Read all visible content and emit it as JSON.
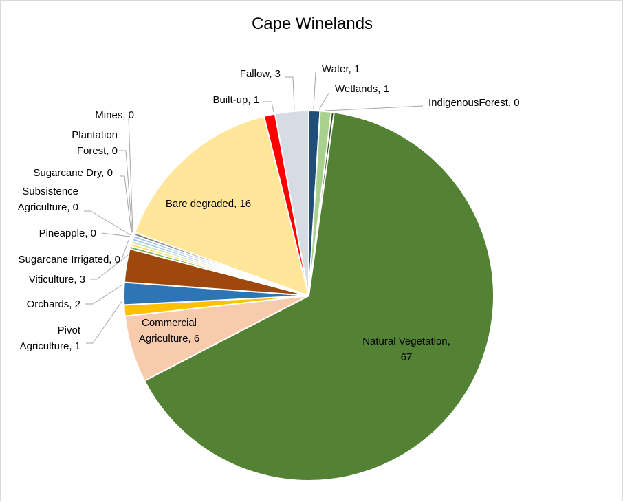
{
  "chart_data": {
    "type": "pie",
    "title": "Cape Winelands",
    "slices": [
      {
        "name": "Water",
        "value": 1,
        "color": "#1f4e79",
        "label": "Water, 1"
      },
      {
        "name": "Wetlands",
        "value": 1,
        "color": "#a9d18e",
        "label": "Wetlands, 1"
      },
      {
        "name": "IndigenousForest",
        "value": 0,
        "color": "#375623",
        "label": "IndigenousForest, 0"
      },
      {
        "name": "Natural Vegetation",
        "value": 67,
        "color": "#548235",
        "label_lines": [
          "Natural Vegetation,",
          "67"
        ]
      },
      {
        "name": "Commercial Agriculture",
        "value": 6,
        "color": "#f8cbad",
        "label_lines": [
          "Commercial",
          "Agriculture, 6"
        ]
      },
      {
        "name": "Pivot Agriculture",
        "value": 1,
        "color": "#ffc000",
        "label_lines": [
          "Pivot",
          "Agriculture, 1"
        ]
      },
      {
        "name": "Orchards",
        "value": 2,
        "color": "#2e75b6",
        "label": "Orchards, 2"
      },
      {
        "name": "Viticulture",
        "value": 3,
        "color": "#9e480e",
        "label": "Viticulture, 3"
      },
      {
        "name": "Sugarcane Irrigated",
        "value": 0,
        "color": "#70ad47",
        "label": "Sugarcane Irrigated, 0"
      },
      {
        "name": "Pineapple",
        "value": 0,
        "color": "#ffd966",
        "label": "Pineapple, 0"
      },
      {
        "name": "Subsistence Agriculture",
        "value": 0,
        "color": "#c5e0b4",
        "label_lines": [
          "Subsistence",
          "Agriculture, 0"
        ]
      },
      {
        "name": "Sugarcane Dry",
        "value": 0,
        "color": "#9dc3e6",
        "label": "Sugarcane Dry, 0"
      },
      {
        "name": "Plantation Forest",
        "value": 0,
        "color": "#9dc3e6",
        "label_lines": [
          "Plantation",
          "Forest, 0"
        ]
      },
      {
        "name": "Mines",
        "value": 0,
        "color": "#7f7f7f",
        "label": "Mines, 0"
      },
      {
        "name": "Bare degraded",
        "value": 16,
        "color": "#ffe699",
        "label": "Bare degraded, 16"
      },
      {
        "name": "Built-up",
        "value": 1,
        "color": "#ff0000",
        "label": "Built-up, 1"
      },
      {
        "name": "Fallow",
        "value": 3,
        "color": "#d6dce4",
        "label": "Fallow, 3"
      }
    ]
  }
}
